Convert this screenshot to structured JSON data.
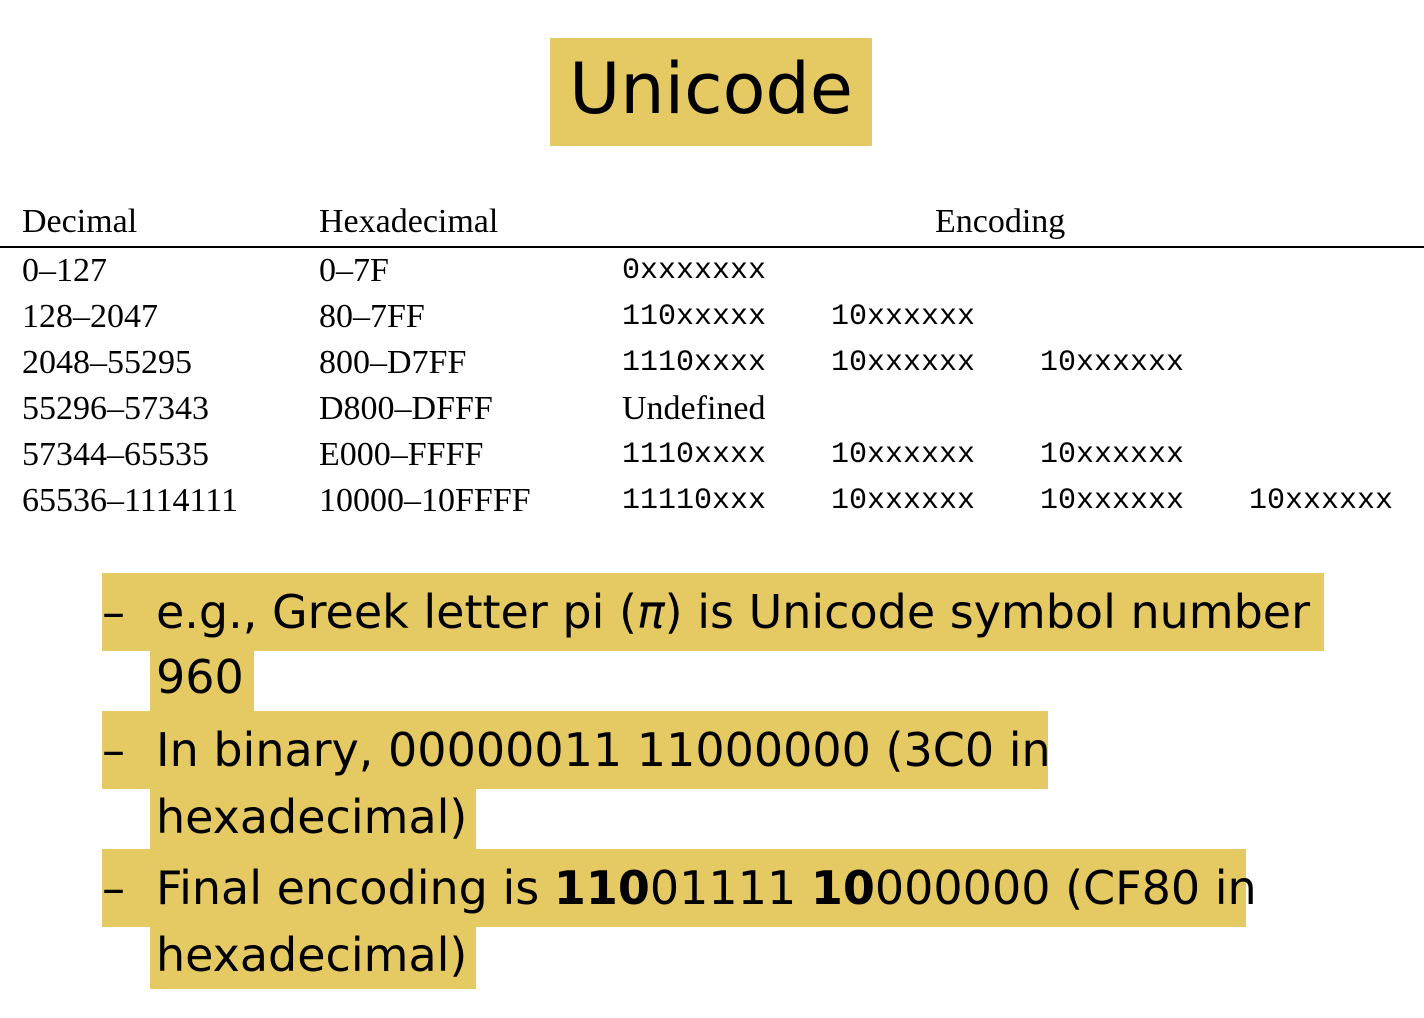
{
  "title": "Unicode",
  "table": {
    "headers": {
      "decimal": "Decimal",
      "hexadecimal": "Hexadecimal",
      "encoding": "Encoding"
    },
    "rows": [
      {
        "decimal": "0–127",
        "hex": "0–7F",
        "enc": [
          "0xxxxxxx",
          "",
          "",
          ""
        ]
      },
      {
        "decimal": "128–2047",
        "hex": "80–7FF",
        "enc": [
          "110xxxxx",
          "10xxxxxx",
          "",
          ""
        ]
      },
      {
        "decimal": "2048–55295",
        "hex": "800–D7FF",
        "enc": [
          "1110xxxx",
          "10xxxxxx",
          "10xxxxxx",
          ""
        ]
      },
      {
        "decimal": "55296–57343",
        "hex": "D800–DFFF",
        "enc": [
          "Undefined",
          "",
          "",
          ""
        ]
      },
      {
        "decimal": "57344–65535",
        "hex": "E000–FFFF",
        "enc": [
          "1110xxxx",
          "10xxxxxx",
          "10xxxxxx",
          ""
        ]
      },
      {
        "decimal": "65536–1114111",
        "hex": "10000–10FFFF",
        "enc": [
          "11110xxx",
          "10xxxxxx",
          "10xxxxxx",
          "10xxxxxx"
        ]
      }
    ]
  },
  "bullets": {
    "dash": "–",
    "b1": {
      "line1_prefix": "e.g., Greek letter pi (",
      "pi": "π",
      "line1_suffix": ") is Unicode symbol number",
      "line2": "960"
    },
    "b2": {
      "line1": "In binary, 00000011 11000000 (3C0 in",
      "line2": "hexadecimal)"
    },
    "b3": {
      "line1_prefix": "Final encoding is ",
      "bold1": "110",
      "mid1": "01111 ",
      "bold2": "10",
      "mid2": "000000 (CF80 in",
      "line2": "hexadecimal)"
    }
  }
}
